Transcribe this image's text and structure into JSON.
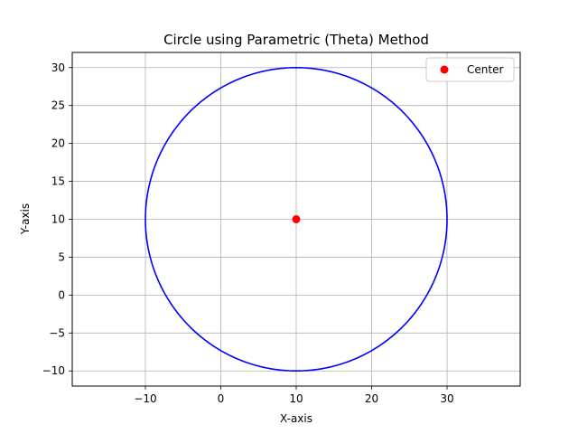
{
  "chart_data": {
    "type": "line",
    "title": "Circle using Parametric (Theta) Method",
    "xlabel": "X-axis",
    "ylabel": "Y-axis",
    "xlim": [
      -19.7,
      39.7
    ],
    "ylim": [
      -12,
      32
    ],
    "x_ticks": [
      -10,
      0,
      10,
      20,
      30
    ],
    "y_ticks": [
      -10,
      -5,
      0,
      5,
      10,
      15,
      20,
      25,
      30
    ],
    "x_tick_labels": [
      "−10",
      "0",
      "10",
      "20",
      "30"
    ],
    "y_tick_labels": [
      "−10",
      "−5",
      "0",
      "5",
      "10",
      "15",
      "20",
      "25",
      "30"
    ],
    "grid": true,
    "circle": {
      "center_x": 10,
      "center_y": 10,
      "radius": 20,
      "color": "#0000ff"
    },
    "series": [
      {
        "name": "Center",
        "type": "scatter",
        "x": [
          10
        ],
        "y": [
          10
        ],
        "color": "#ff0000"
      }
    ],
    "legend": {
      "placement": "top-right",
      "entries": [
        "Center"
      ]
    }
  }
}
